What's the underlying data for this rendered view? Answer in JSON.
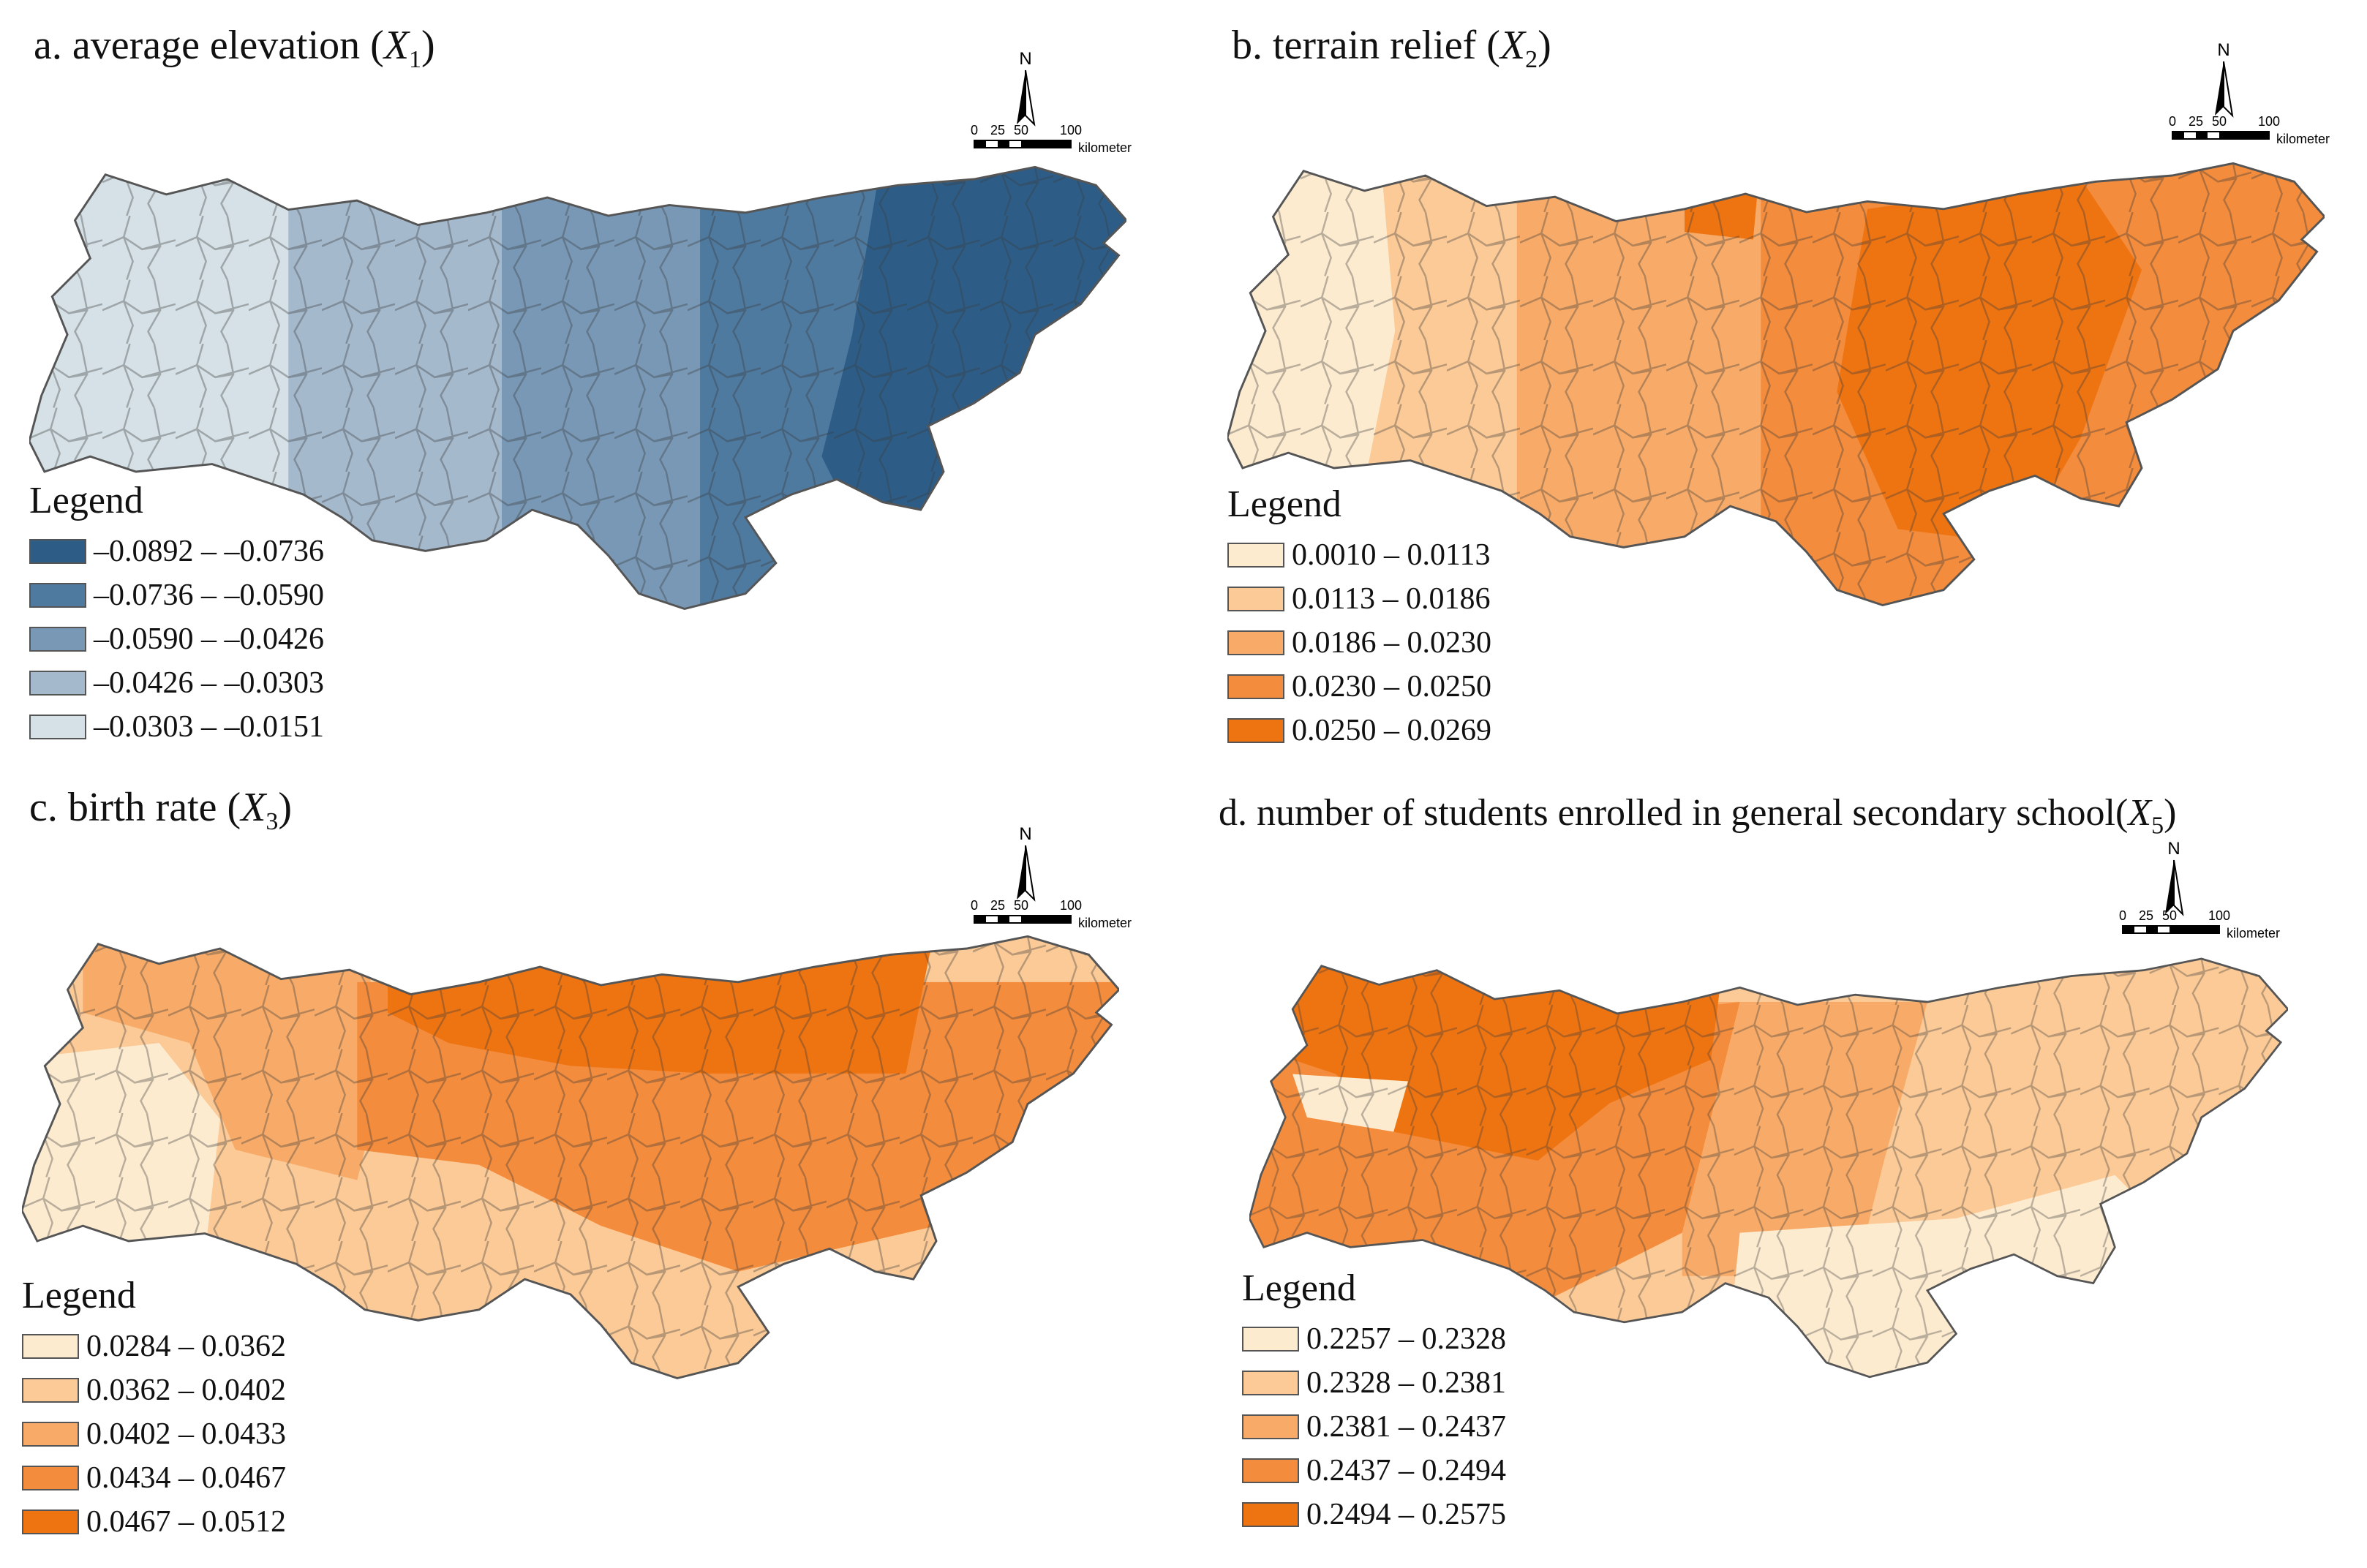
{
  "compass": {
    "north_label": "N"
  },
  "scale": {
    "ticks": [
      "0",
      "25",
      "50",
      "100"
    ],
    "unit": "kilometer"
  },
  "legend_title": "Legend",
  "panels": [
    {
      "id": "a",
      "title_prefix": "a.  average elevation (",
      "var": "X",
      "sub": "1",
      "title_suffix": ")",
      "classes": [
        {
          "label": "–0.0892 – –0.0736",
          "color": "#2d5d87"
        },
        {
          "label": "–0.0736 – –0.0590",
          "color": "#4f7aa0"
        },
        {
          "label": "–0.0590 – –0.0426",
          "color": "#7898b6"
        },
        {
          "label": "–0.0426 – –0.0303",
          "color": "#a5b9cc"
        },
        {
          "label": "–0.0303 – –0.0151",
          "color": "#d5e1e6"
        }
      ]
    },
    {
      "id": "b",
      "title_prefix": "b.  terrain relief (",
      "var": "X",
      "sub": "2",
      "title_suffix": ")",
      "classes": [
        {
          "label": "0.0010 – 0.0113",
          "color": "#fdebd0"
        },
        {
          "label": "0.0113 – 0.0186",
          "color": "#fbca96"
        },
        {
          "label": "0.0186 – 0.0230",
          "color": "#f8ab68"
        },
        {
          "label": "0.0230 – 0.0250",
          "color": "#f38c3c"
        },
        {
          "label": "0.0250 – 0.0269",
          "color": "#ee7412"
        }
      ]
    },
    {
      "id": "c",
      "title_prefix": "c.  birth rate (",
      "var": "X",
      "sub": "3",
      "title_suffix": ")",
      "classes": [
        {
          "label": "0.0284 – 0.0362",
          "color": "#fdebd0"
        },
        {
          "label": "0.0362 – 0.0402",
          "color": "#fbca96"
        },
        {
          "label": "0.0402 – 0.0433",
          "color": "#f8ab68"
        },
        {
          "label": "0.0434 – 0.0467",
          "color": "#f38c3c"
        },
        {
          "label": "0.0467 – 0.0512",
          "color": "#ee7412"
        }
      ]
    },
    {
      "id": "d",
      "title_prefix": "d.  number of students enrolled in general secondary school(",
      "var": "X",
      "sub": "5",
      "title_suffix": ")",
      "classes": [
        {
          "label": "0.2257 – 0.2328",
          "color": "#fdebd0"
        },
        {
          "label": "0.2328 – 0.2381",
          "color": "#fbca96"
        },
        {
          "label": "0.2381 – 0.2437",
          "color": "#f8ab68"
        },
        {
          "label": "0.2437 – 0.2494",
          "color": "#f38c3c"
        },
        {
          "label": "0.2494 – 0.2575",
          "color": "#ee7412"
        }
      ]
    }
  ]
}
